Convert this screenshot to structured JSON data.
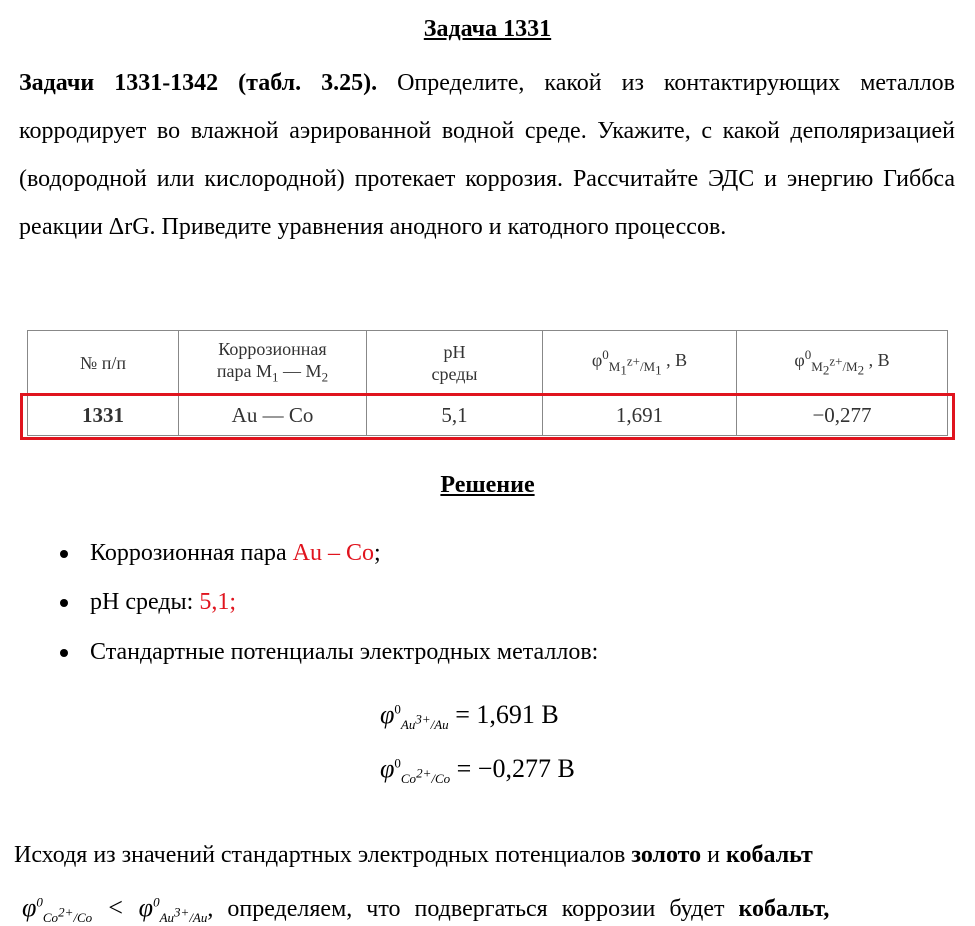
{
  "task_title": "Задача 1331",
  "task_text_bold": "Задачи 1331-1342 (табл. 3.25).",
  "task_text": " Определите, какой из контактирующих металлов корродирует во влажной аэрированной водной среде. Укажите, с какой деполяризацией (водородной или кислородной) протекает коррозия. Рассчитайте ЭДС и энергию Гиббса реакции ΔrG. Приведите уравнения анодного и катодного процессов.",
  "table": {
    "headers": [
      "№ п/п",
      "Коррозионная пара M1 — M2",
      "pH среды",
      "φ0 M1z+/M1 , В",
      "φ0 M2z+/M2 , В"
    ],
    "row": [
      "1331",
      "Au — Co",
      "5,1",
      "1,691",
      "−0,277"
    ],
    "highlight_color": "#e0141e"
  },
  "solution_title": "Решение",
  "bullets": [
    {
      "label": "Коррозионная пара ",
      "value": "Au – Co",
      "suffix": ";"
    },
    {
      "label": "pH среды: ",
      "value": "5,1;"
    },
    {
      "label": "Стандартные потенциалы электродных металлов:"
    }
  ],
  "formulas": [
    {
      "symbol": "φ",
      "sup": "0",
      "sub": "Au3+/Au",
      "rhs": "= 1,691 В"
    },
    {
      "symbol": "φ",
      "sup": "0",
      "sub": "Co2+/Co",
      "rhs": "= −0,277 В"
    }
  ],
  "conclusion": {
    "line1_a": "Исходя из значений стандартных электродных потенциалов ",
    "gold": "золото",
    "and": " и ",
    "cobalt": "кобальт",
    "ineq": "φ0Co2+/Co < φ0Au3+/Au",
    "line2": ", определяем, что подвергаться коррозии будет ",
    "cobalt2": "кобальт,"
  }
}
